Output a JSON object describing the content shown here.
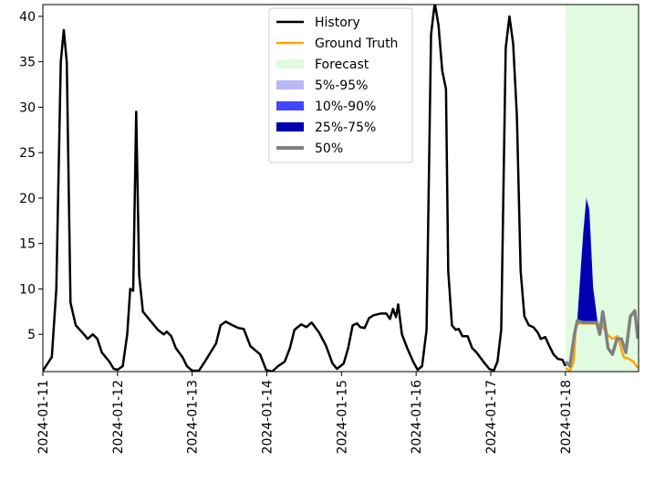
{
  "chart_data": {
    "type": "line",
    "xlim": [
      0,
      7.98
    ],
    "ylim": [
      0.9,
      41.3
    ],
    "yticks": [
      5,
      10,
      15,
      20,
      25,
      30,
      35,
      40
    ],
    "xticks": [
      {
        "value": 0,
        "label": "2024-01-11"
      },
      {
        "value": 1,
        "label": "2024-01-12"
      },
      {
        "value": 2,
        "label": "2024-01-13"
      },
      {
        "value": 3,
        "label": "2024-01-14"
      },
      {
        "value": 4,
        "label": "2024-01-15"
      },
      {
        "value": 5,
        "label": "2024-01-16"
      },
      {
        "value": 6,
        "label": "2024-01-17"
      },
      {
        "value": 7,
        "label": "2024-01-18"
      }
    ],
    "forecast": {
      "name": "Forecast",
      "color": "#e0fbe0",
      "span": [
        7.0,
        7.98
      ]
    },
    "bands": [
      {
        "name": "5%-95%",
        "color": "#b8b8f8",
        "x": [
          7.16,
          7.21,
          7.24,
          7.28,
          7.32,
          7.37,
          7.43
        ],
        "lower": [
          6.2,
          6.2,
          6.2,
          6.2,
          6.2,
          6.2,
          6.2
        ],
        "upper": [
          6.8,
          13.0,
          16.5,
          20.2,
          19.0,
          10.5,
          6.5
        ]
      },
      {
        "name": "10%-90%",
        "color": "#4444ff",
        "x": [
          7.16,
          7.21,
          7.24,
          7.28,
          7.32,
          7.37,
          7.43
        ],
        "lower": [
          6.25,
          6.25,
          6.25,
          6.25,
          6.25,
          6.25,
          6.25
        ],
        "upper": [
          6.6,
          12.8,
          16.3,
          20.0,
          18.8,
          10.3,
          6.4
        ]
      },
      {
        "name": "25%-75%",
        "color": "#0000b0",
        "x": [
          7.16,
          7.21,
          7.24,
          7.28,
          7.32,
          7.37,
          7.43
        ],
        "lower": [
          6.3,
          6.3,
          6.3,
          6.3,
          6.3,
          6.3,
          6.3
        ],
        "upper": [
          6.5,
          12.5,
          16.0,
          19.8,
          18.5,
          10.0,
          6.3
        ]
      }
    ],
    "series": [
      {
        "name": "History",
        "color": "#000000",
        "x": [
          0,
          0.12,
          0.18,
          0.24,
          0.28,
          0.32,
          0.37,
          0.44,
          0.55,
          0.6,
          0.67,
          0.73,
          0.79,
          0.89,
          0.95,
          1.0,
          1.07,
          1.13,
          1.17,
          1.21,
          1.25,
          1.29,
          1.34,
          1.44,
          1.54,
          1.62,
          1.66,
          1.72,
          1.78,
          1.87,
          1.93,
          2.0,
          2.09,
          2.17,
          2.26,
          2.32,
          2.38,
          2.45,
          2.54,
          2.62,
          2.69,
          2.78,
          2.91,
          2.99,
          3.07,
          3.15,
          3.24,
          3.31,
          3.37,
          3.46,
          3.53,
          3.6,
          3.7,
          3.79,
          3.88,
          3.94,
          4.03,
          4.09,
          4.15,
          4.21,
          4.25,
          4.31,
          4.37,
          4.43,
          4.53,
          4.6,
          4.65,
          4.69,
          4.73,
          4.76,
          4.81,
          4.88,
          4.96,
          5.02,
          5.08,
          5.14,
          5.2,
          5.25,
          5.3,
          5.35,
          5.4,
          5.43,
          5.48,
          5.53,
          5.57,
          5.62,
          5.69,
          5.75,
          5.81,
          5.9,
          5.98,
          6.04,
          6.09,
          6.14,
          6.2,
          6.25,
          6.3,
          6.35,
          6.4,
          6.45,
          6.51,
          6.57,
          6.63,
          6.67,
          6.73,
          6.78,
          6.84,
          6.9,
          6.96,
          7.0
        ],
        "values": [
          1.0,
          2.5,
          10,
          35,
          38.5,
          35,
          8.5,
          6,
          5,
          4.5,
          5,
          4.5,
          3,
          2,
          1.2,
          1.1,
          1.5,
          5,
          10,
          9.8,
          29.5,
          11.5,
          7.5,
          6.5,
          5.5,
          5,
          5.3,
          4.8,
          3.5,
          2.5,
          1.5,
          1.0,
          1.0,
          2,
          3.2,
          4,
          6,
          6.4,
          6,
          5.7,
          5.6,
          3.7,
          2.8,
          1.1,
          0.9,
          1.5,
          2,
          3.5,
          5.5,
          6.1,
          5.8,
          6.3,
          5.2,
          3.8,
          1.8,
          1.2,
          1.8,
          3.5,
          6,
          6.2,
          5.8,
          5.7,
          6.8,
          7.1,
          7.3,
          7.3,
          6.7,
          7.8,
          6.9,
          8.3,
          5,
          3.5,
          2,
          1.1,
          1.5,
          5.5,
          38,
          41.5,
          39,
          34,
          32,
          12,
          6,
          5.5,
          5.6,
          4.8,
          4.8,
          3.5,
          3,
          2,
          1.2,
          1.0,
          2,
          5.5,
          36.5,
          40,
          37,
          29,
          12,
          7,
          6,
          5.8,
          5.2,
          4.5,
          4.7,
          3.8,
          2.8,
          2.3,
          2.2,
          1.5
        ]
      },
      {
        "name": "Ground Truth",
        "color": "#ffa500",
        "x": [
          7.0,
          7.06,
          7.11,
          7.14,
          7.19,
          7.36,
          7.48,
          7.56,
          7.63,
          7.7,
          7.78,
          7.85,
          7.91,
          7.97
        ],
        "values": [
          1.3,
          1.0,
          2,
          6,
          6.2,
          6.2,
          6.1,
          5,
          4.5,
          4.8,
          2.5,
          2.3,
          2,
          1.3
        ]
      },
      {
        "name": "50%",
        "color": "#808080",
        "x": [
          7.0,
          7.06,
          7.12,
          7.16,
          7.24,
          7.42,
          7.46,
          7.5,
          7.53,
          7.57,
          7.63,
          7.69,
          7.75,
          7.81,
          7.87,
          7.93,
          7.97
        ],
        "values": [
          2,
          1.5,
          5,
          6.5,
          6.3,
          6.3,
          5,
          7.5,
          6,
          3.5,
          2.8,
          4.5,
          4.5,
          3,
          7,
          7.6,
          4.5
        ]
      }
    ]
  }
}
